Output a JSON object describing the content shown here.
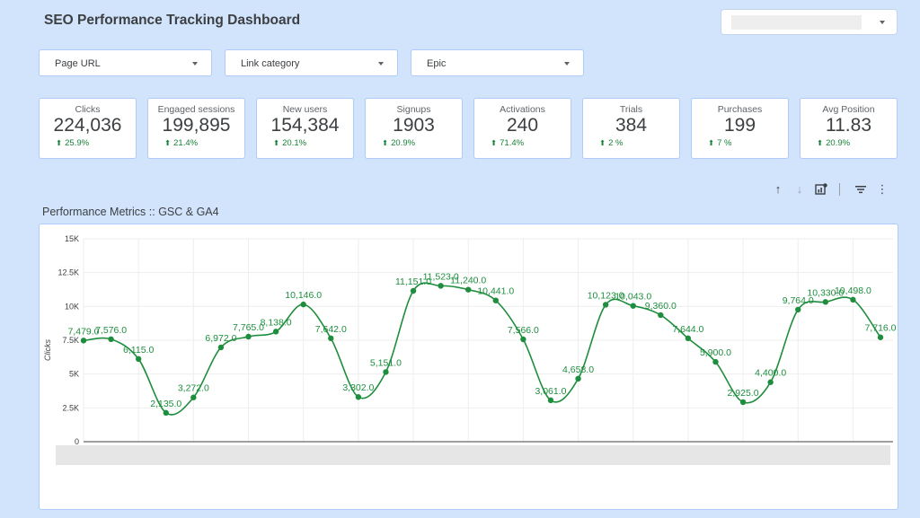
{
  "header": {
    "title": "SEO Performance Tracking Dashboard"
  },
  "date_range": {
    "value": ""
  },
  "filters": [
    {
      "label": "Page URL"
    },
    {
      "label": "Link category"
    },
    {
      "label": "Epic"
    }
  ],
  "scorecards": [
    {
      "label": "Clicks",
      "value": "224,036",
      "delta": "25.9%"
    },
    {
      "label": "Engaged sessions",
      "value": "199,895",
      "delta": "21.4%"
    },
    {
      "label": "New users",
      "value": "154,384",
      "delta": "20.1%"
    },
    {
      "label": "Signups",
      "value": "1903",
      "delta": "20.9%"
    },
    {
      "label": "Activations",
      "value": "240",
      "delta": "71.4%"
    },
    {
      "label": "Trials",
      "value": "384",
      "delta": "2 %"
    },
    {
      "label": "Purchases",
      "value": "199",
      "delta": "7 %"
    },
    {
      "label": "Avg Position",
      "value": "11.83",
      "delta": "20.9%"
    }
  ],
  "toolbar": {
    "icons": [
      "sort-ascending-icon",
      "sort-descending-icon",
      "chart-settings-icon",
      "filter-icon",
      "more-vert-icon"
    ]
  },
  "colors": {
    "accent": "#1e8e3e",
    "background": "#d2e3fc",
    "card_border": "#aecbfa"
  },
  "chart_title": "Performance Metrics :: GSC & GA4",
  "chart_data": {
    "type": "line",
    "title": "Performance Metrics :: GSC & GA4",
    "xlabel": "",
    "ylabel": "Clicks",
    "ylim": [
      0,
      15000
    ],
    "yticks": [
      0,
      2500,
      5000,
      7500,
      10000,
      12500,
      15000
    ],
    "ytick_labels": [
      "0",
      "2.5K",
      "5K",
      "7.5K",
      "10K",
      "12.5K",
      "15K"
    ],
    "grid": true,
    "series": [
      {
        "name": "Clicks",
        "values": [
          7479,
          7576,
          6115,
          2135,
          3272,
          6972,
          7765,
          8138,
          10146,
          7642,
          3302,
          5151,
          11151,
          11523,
          11240,
          10441,
          7566,
          3061,
          4658,
          10123,
          10043,
          9360,
          7644,
          5900,
          2925,
          4400,
          9764,
          10330,
          10498,
          7716
        ],
        "labels": [
          "7,479.0",
          "7,576.0",
          "6,115.0",
          "2,135.0",
          "3,272.0",
          "6,972.0",
          "7,765.0",
          "8,138.0",
          "10,146.0",
          "7,642.0",
          "3,302.0",
          "5,151.0",
          "11,151.0",
          "11,523.0",
          "11,240.0",
          "10,441.0",
          "7,566.0",
          "3,061.0",
          "4,658.0",
          "10,123.0",
          "10,043.0",
          "9,360.0",
          "7,644.0",
          "5,900.0",
          "2,925.0",
          "4,400.0",
          "9,764.0",
          "10,330.0",
          "10,498.0",
          "7,716.0"
        ]
      }
    ]
  }
}
